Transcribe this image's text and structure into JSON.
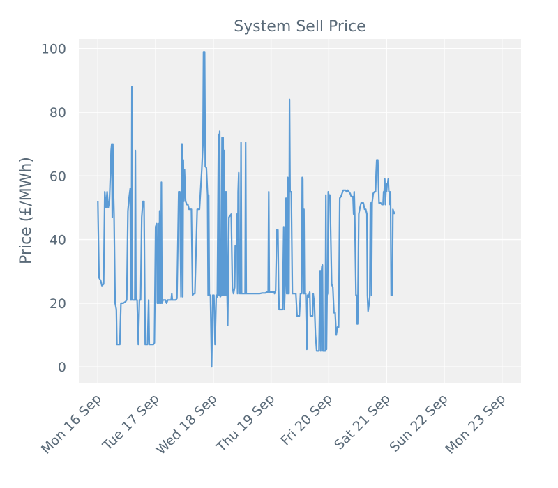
{
  "chart_data": {
    "type": "line",
    "title": "System Sell Price",
    "xlabel": "",
    "ylabel": "Price (£/MWh)",
    "ylim": [
      -5,
      103
    ],
    "y_ticks": [
      0,
      20,
      40,
      60,
      80,
      100
    ],
    "x_ticks": [
      {
        "label": "Mon 16 Sep",
        "day": 0
      },
      {
        "label": "Tue 17 Sep",
        "day": 1
      },
      {
        "label": "Wed 18 Sep",
        "day": 2
      },
      {
        "label": "Thu 19 Sep",
        "day": 3
      },
      {
        "label": "Fri 20 Sep",
        "day": 4
      },
      {
        "label": "Sat 21 Sep",
        "day": 5
      },
      {
        "label": "Sun 22 Sep",
        "day": 6
      },
      {
        "label": "Mon 23 Sep",
        "day": 7
      }
    ],
    "xlim_days": [
      -0.33,
      7.33
    ],
    "grid": true,
    "colors": {
      "line": "#5b9bd5",
      "background": "#f0f0f0",
      "grid": "#ffffff",
      "text": "#5a6a78"
    },
    "series": [
      {
        "values": [
          [
            0.0,
            52
          ],
          [
            0.02,
            28
          ],
          [
            0.05,
            27
          ],
          [
            0.07,
            25.5
          ],
          [
            0.1,
            26
          ],
          [
            0.12,
            55
          ],
          [
            0.14,
            50
          ],
          [
            0.16,
            55
          ],
          [
            0.18,
            50
          ],
          [
            0.2,
            52
          ],
          [
            0.22,
            62
          ],
          [
            0.23,
            68
          ],
          [
            0.24,
            70
          ],
          [
            0.25,
            47
          ],
          [
            0.26,
            70
          ],
          [
            0.27,
            55
          ],
          [
            0.28,
            48
          ],
          [
            0.3,
            20
          ],
          [
            0.32,
            18
          ],
          [
            0.33,
            7
          ],
          [
            0.36,
            7
          ],
          [
            0.38,
            7
          ],
          [
            0.4,
            20
          ],
          [
            0.44,
            20
          ],
          [
            0.48,
            20.5
          ],
          [
            0.5,
            21
          ],
          [
            0.52,
            49
          ],
          [
            0.54,
            53
          ],
          [
            0.56,
            56
          ],
          [
            0.57,
            21
          ],
          [
            0.58,
            21
          ],
          [
            0.59,
            88
          ],
          [
            0.6,
            21
          ],
          [
            0.62,
            21
          ],
          [
            0.64,
            21
          ],
          [
            0.65,
            68
          ],
          [
            0.66,
            21
          ],
          [
            0.68,
            21
          ],
          [
            0.7,
            7
          ],
          [
            0.72,
            21
          ],
          [
            0.74,
            21
          ],
          [
            0.76,
            47
          ],
          [
            0.78,
            52
          ],
          [
            0.8,
            52
          ],
          [
            0.82,
            7
          ],
          [
            0.84,
            7
          ],
          [
            0.86,
            7
          ],
          [
            0.88,
            21
          ],
          [
            0.89,
            7
          ],
          [
            0.92,
            7
          ],
          [
            0.94,
            7
          ],
          [
            0.96,
            7
          ],
          [
            0.98,
            7.5
          ],
          [
            1.0,
            44
          ],
          [
            1.02,
            45
          ],
          [
            1.03,
            20
          ],
          [
            1.04,
            20
          ],
          [
            1.05,
            45
          ],
          [
            1.06,
            20
          ],
          [
            1.07,
            49
          ],
          [
            1.08,
            20
          ],
          [
            1.09,
            20
          ],
          [
            1.1,
            58
          ],
          [
            1.11,
            20
          ],
          [
            1.13,
            21
          ],
          [
            1.15,
            21
          ],
          [
            1.17,
            21
          ],
          [
            1.19,
            20
          ],
          [
            1.21,
            21
          ],
          [
            1.23,
            21
          ],
          [
            1.25,
            21
          ],
          [
            1.27,
            21
          ],
          [
            1.28,
            23
          ],
          [
            1.29,
            21
          ],
          [
            1.32,
            21
          ],
          [
            1.35,
            21
          ],
          [
            1.37,
            21.5
          ],
          [
            1.4,
            55
          ],
          [
            1.42,
            55
          ],
          [
            1.44,
            22
          ],
          [
            1.45,
            70
          ],
          [
            1.46,
            70
          ],
          [
            1.47,
            22
          ],
          [
            1.48,
            65
          ],
          [
            1.49,
            52
          ],
          [
            1.5,
            62
          ],
          [
            1.52,
            52
          ],
          [
            1.54,
            51
          ],
          [
            1.56,
            51
          ],
          [
            1.58,
            49.5
          ],
          [
            1.62,
            49.5
          ],
          [
            1.64,
            22.5
          ],
          [
            1.66,
            23
          ],
          [
            1.68,
            23
          ],
          [
            1.72,
            49.5
          ],
          [
            1.76,
            49.5
          ],
          [
            1.8,
            62
          ],
          [
            1.82,
            70
          ],
          [
            1.83,
            99
          ],
          [
            1.85,
            99
          ],
          [
            1.86,
            63
          ],
          [
            1.88,
            62.5
          ],
          [
            1.9,
            54
          ],
          [
            1.91,
            22.5
          ],
          [
            1.92,
            54
          ],
          [
            1.93,
            22.5
          ],
          [
            1.95,
            22.5
          ],
          [
            1.97,
            0
          ],
          [
            1.99,
            22.5
          ],
          [
            2.01,
            22.5
          ],
          [
            2.03,
            7
          ],
          [
            2.05,
            22.5
          ],
          [
            2.07,
            22
          ],
          [
            2.09,
            73
          ],
          [
            2.1,
            22.5
          ],
          [
            2.11,
            74
          ],
          [
            2.12,
            22
          ],
          [
            2.14,
            22.5
          ],
          [
            2.15,
            72
          ],
          [
            2.16,
            22.5
          ],
          [
            2.17,
            72
          ],
          [
            2.18,
            22.5
          ],
          [
            2.19,
            68
          ],
          [
            2.2,
            22.5
          ],
          [
            2.21,
            55
          ],
          [
            2.22,
            22.5
          ],
          [
            2.23,
            55
          ],
          [
            2.24,
            22
          ],
          [
            2.25,
            13
          ],
          [
            2.27,
            47
          ],
          [
            2.29,
            47.5
          ],
          [
            2.31,
            48
          ],
          [
            2.33,
            25
          ],
          [
            2.35,
            23
          ],
          [
            2.37,
            25
          ],
          [
            2.38,
            38
          ],
          [
            2.4,
            38
          ],
          [
            2.41,
            48
          ],
          [
            2.42,
            23
          ],
          [
            2.43,
            55
          ],
          [
            2.44,
            61
          ],
          [
            2.45,
            23
          ],
          [
            2.46,
            35
          ],
          [
            2.47,
            23
          ],
          [
            2.48,
            70.5
          ],
          [
            2.49,
            23
          ],
          [
            2.51,
            23
          ],
          [
            2.53,
            23
          ],
          [
            2.55,
            23
          ],
          [
            2.56,
            70.5
          ],
          [
            2.57,
            23
          ],
          [
            2.6,
            23
          ],
          [
            2.65,
            23
          ],
          [
            2.7,
            23
          ],
          [
            2.75,
            23
          ],
          [
            2.8,
            23
          ],
          [
            2.85,
            23.2
          ],
          [
            2.9,
            23.2
          ],
          [
            2.93,
            23.5
          ],
          [
            2.95,
            23.5
          ],
          [
            2.96,
            55
          ],
          [
            2.97,
            23.5
          ],
          [
            3.0,
            23.5
          ],
          [
            3.05,
            23.5
          ],
          [
            3.06,
            23
          ],
          [
            3.08,
            24
          ],
          [
            3.1,
            43
          ],
          [
            3.12,
            43
          ],
          [
            3.13,
            25
          ],
          [
            3.14,
            18
          ],
          [
            3.17,
            18
          ],
          [
            3.2,
            18
          ],
          [
            3.22,
            44
          ],
          [
            3.23,
            18
          ],
          [
            3.25,
            30
          ],
          [
            3.26,
            53
          ],
          [
            3.27,
            23
          ],
          [
            3.28,
            23
          ],
          [
            3.29,
            59.5
          ],
          [
            3.3,
            23
          ],
          [
            3.31,
            23
          ],
          [
            3.32,
            84
          ],
          [
            3.33,
            55
          ],
          [
            3.34,
            55
          ],
          [
            3.35,
            55
          ],
          [
            3.37,
            23
          ],
          [
            3.4,
            23
          ],
          [
            3.43,
            23
          ],
          [
            3.45,
            16
          ],
          [
            3.47,
            16
          ],
          [
            3.49,
            16
          ],
          [
            3.51,
            23
          ],
          [
            3.53,
            23
          ],
          [
            3.54,
            59.5
          ],
          [
            3.55,
            59
          ],
          [
            3.56,
            23
          ],
          [
            3.57,
            49.5
          ],
          [
            3.58,
            23
          ],
          [
            3.6,
            23
          ],
          [
            3.62,
            5.5
          ],
          [
            3.63,
            22.5
          ],
          [
            3.65,
            22
          ],
          [
            3.67,
            23.5
          ],
          [
            3.68,
            16
          ],
          [
            3.7,
            16
          ],
          [
            3.72,
            16
          ],
          [
            3.73,
            23
          ],
          [
            3.75,
            20
          ],
          [
            3.77,
            10
          ],
          [
            3.79,
            5
          ],
          [
            3.81,
            5
          ],
          [
            3.83,
            5
          ],
          [
            3.85,
            30
          ],
          [
            3.86,
            5
          ],
          [
            3.87,
            29
          ],
          [
            3.88,
            31.5
          ],
          [
            3.89,
            32
          ],
          [
            3.9,
            5
          ],
          [
            3.92,
            5
          ],
          [
            3.94,
            5
          ],
          [
            3.95,
            54
          ],
          [
            3.96,
            5.5
          ],
          [
            3.97,
            22.5
          ],
          [
            3.98,
            23
          ],
          [
            3.99,
            55
          ],
          [
            4.0,
            54
          ],
          [
            4.01,
            54
          ],
          [
            4.02,
            54
          ],
          [
            4.03,
            45
          ],
          [
            4.05,
            26
          ],
          [
            4.07,
            25
          ],
          [
            4.09,
            17
          ],
          [
            4.11,
            17
          ],
          [
            4.13,
            10
          ],
          [
            4.15,
            12.5
          ],
          [
            4.17,
            12.5
          ],
          [
            4.19,
            53
          ],
          [
            4.21,
            53.5
          ],
          [
            4.25,
            55.5
          ],
          [
            4.29,
            55.5
          ],
          [
            4.31,
            55
          ],
          [
            4.33,
            55.5
          ],
          [
            4.37,
            54.5
          ],
          [
            4.39,
            53.5
          ],
          [
            4.42,
            53.5
          ],
          [
            4.43,
            48
          ],
          [
            4.44,
            55
          ],
          [
            4.45,
            48
          ],
          [
            4.47,
            22.5
          ],
          [
            4.48,
            22.5
          ],
          [
            4.49,
            13.5
          ],
          [
            4.5,
            13.5
          ],
          [
            4.52,
            48
          ],
          [
            4.54,
            50
          ],
          [
            4.56,
            51.5
          ],
          [
            4.58,
            51.5
          ],
          [
            4.6,
            51.5
          ],
          [
            4.62,
            49.5
          ],
          [
            4.64,
            49.5
          ],
          [
            4.66,
            48
          ],
          [
            4.67,
            22.5
          ],
          [
            4.68,
            17.5
          ],
          [
            4.7,
            20
          ],
          [
            4.71,
            22
          ],
          [
            4.72,
            51
          ],
          [
            4.73,
            51.5
          ],
          [
            4.74,
            22.5
          ],
          [
            4.75,
            51.5
          ],
          [
            4.77,
            54.5
          ],
          [
            4.79,
            55
          ],
          [
            4.81,
            55
          ],
          [
            4.82,
            61
          ],
          [
            4.83,
            65
          ],
          [
            4.85,
            65
          ],
          [
            4.87,
            51.5
          ],
          [
            4.9,
            51.5
          ],
          [
            4.92,
            51
          ],
          [
            4.94,
            51
          ],
          [
            4.95,
            55
          ],
          [
            4.96,
            55
          ],
          [
            4.97,
            59
          ],
          [
            4.98,
            51
          ],
          [
            4.99,
            55
          ],
          [
            5.0,
            55
          ],
          [
            5.01,
            57.5
          ],
          [
            5.02,
            57.5
          ],
          [
            5.03,
            59
          ],
          [
            5.04,
            55
          ],
          [
            5.05,
            55
          ],
          [
            5.06,
            51
          ],
          [
            5.07,
            55
          ],
          [
            5.08,
            22.5
          ],
          [
            5.09,
            22.5
          ],
          [
            5.1,
            22.5
          ],
          [
            5.11,
            49.5
          ],
          [
            5.13,
            48.5
          ],
          [
            5.14,
            48
          ]
        ]
      }
    ]
  }
}
